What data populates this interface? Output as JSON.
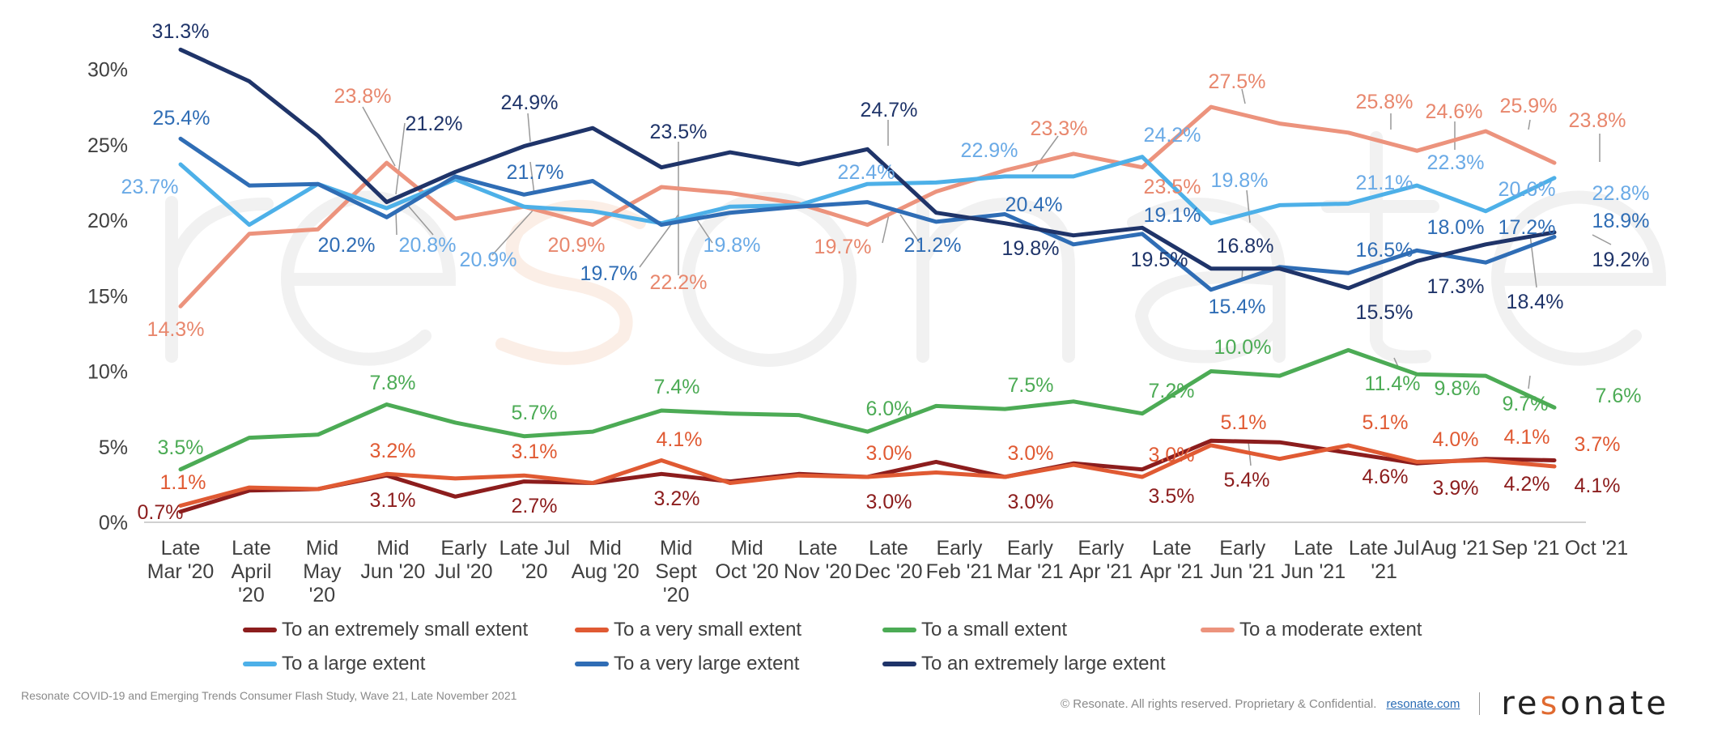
{
  "chart_data": {
    "type": "line",
    "categories": [
      [
        "Late",
        "Mar '20"
      ],
      [
        "Late",
        "April",
        "'20"
      ],
      [
        "Mid",
        "May",
        "'20"
      ],
      [
        "Mid",
        "Jun '20"
      ],
      [
        "Early",
        "Jul '20"
      ],
      [
        "Late Jul",
        "'20"
      ],
      [
        "Mid",
        "Aug '20"
      ],
      [
        "Mid",
        "Sept",
        "'20"
      ],
      [
        "Mid",
        "Oct '20"
      ],
      [
        "Late",
        "Nov '20"
      ],
      [
        "Late",
        "Dec '20"
      ],
      [
        "Early",
        "Feb '21"
      ],
      [
        "Early",
        "Mar '21"
      ],
      [
        "Early",
        "Apr '21"
      ],
      [
        "Late",
        "Apr '21"
      ],
      [
        "Early",
        "Jun '21"
      ],
      [
        "Late",
        "Jun '21"
      ],
      [
        "Late Jul",
        "'21"
      ],
      [
        "Aug '21"
      ],
      [
        "Sep '21"
      ],
      [
        "Oct '21"
      ]
    ],
    "ylim": [
      0,
      30
    ],
    "yticks": [
      "0%",
      "5%",
      "10%",
      "15%",
      "20%",
      "25%",
      "30%"
    ],
    "grid": false,
    "legend_position": "bottom",
    "series": [
      {
        "name": "To an extremely small extent",
        "color": "#8c1d1d",
        "label_color": "#8c1d1d",
        "values": [
          0.7,
          2.1,
          2.2,
          3.1,
          1.7,
          2.7,
          2.6,
          3.2,
          2.7,
          3.2,
          3.0,
          4.0,
          3.0,
          3.9,
          3.5,
          5.4,
          5.3,
          4.6,
          3.9,
          4.2,
          4.1
        ]
      },
      {
        "name": "To a very small extent",
        "color": "#e05a33",
        "label_color": "#e05a33",
        "values": [
          1.1,
          2.3,
          2.2,
          3.2,
          2.9,
          3.1,
          2.6,
          4.1,
          2.6,
          3.1,
          3.0,
          3.3,
          3.0,
          3.8,
          3.0,
          5.1,
          4.2,
          5.1,
          4.0,
          4.1,
          3.7
        ]
      },
      {
        "name": "To a small extent",
        "color": "#4cab55",
        "label_color": "#4cab55",
        "values": [
          3.5,
          5.6,
          5.8,
          7.8,
          6.6,
          5.7,
          6.0,
          7.4,
          7.2,
          7.1,
          6.0,
          7.7,
          7.5,
          8.0,
          7.2,
          10.0,
          9.7,
          11.4,
          9.8,
          9.7,
          7.6
        ]
      },
      {
        "name": "To a moderate extent",
        "color": "#ec937d",
        "label_color": "#e8876d",
        "values": [
          14.3,
          19.1,
          19.4,
          23.8,
          20.1,
          20.9,
          19.7,
          22.2,
          21.8,
          21.1,
          19.7,
          21.9,
          23.3,
          24.4,
          23.5,
          27.5,
          26.4,
          25.8,
          24.6,
          25.9,
          23.8
        ]
      },
      {
        "name": "To a large extent",
        "color": "#4db0e8",
        "label_color": "#6aaae6",
        "values": [
          23.7,
          19.7,
          22.4,
          20.8,
          22.7,
          20.9,
          20.6,
          19.8,
          20.9,
          21.0,
          22.4,
          22.5,
          22.9,
          22.9,
          24.2,
          19.8,
          21.0,
          21.1,
          22.3,
          20.6,
          22.8
        ]
      },
      {
        "name": "To a very large extent",
        "color": "#2f6db5",
        "label_color": "#2f6db5",
        "values": [
          25.4,
          22.3,
          22.4,
          20.2,
          22.9,
          21.7,
          22.6,
          19.7,
          20.5,
          20.9,
          21.2,
          19.9,
          20.4,
          18.4,
          19.1,
          15.4,
          16.9,
          16.5,
          18.0,
          17.2,
          18.9
        ]
      },
      {
        "name": "To an extremely large extent",
        "color": "#1f3469",
        "label_color": "#1f3469",
        "values": [
          31.3,
          29.2,
          25.6,
          21.2,
          23.2,
          24.9,
          26.1,
          23.5,
          24.5,
          23.7,
          24.7,
          20.5,
          19.8,
          19.0,
          19.5,
          16.8,
          16.8,
          15.5,
          17.3,
          18.4,
          19.2
        ]
      }
    ],
    "data_labels": [
      {
        "series": 6,
        "text": "31.3%"
      },
      {
        "series": 5,
        "text": "25.4%"
      },
      {
        "series": 4,
        "text": "23.7%"
      },
      {
        "series": 3,
        "text": "14.3%"
      },
      {
        "series": 3,
        "text": "23.8%"
      },
      {
        "series": 6,
        "text": "21.2%"
      },
      {
        "series": 5,
        "text": "20.2%"
      },
      {
        "series": 4,
        "text": "20.8%"
      },
      {
        "series": 6,
        "text": "24.9%"
      },
      {
        "series": 5,
        "text": "21.7%"
      },
      {
        "series": 4,
        "text": "20.9%"
      },
      {
        "series": 3,
        "text": "20.9%"
      },
      {
        "series": 5,
        "text": "19.7%"
      },
      {
        "series": 3,
        "text": "22.2%"
      },
      {
        "series": 6,
        "text": "23.5%"
      },
      {
        "series": 4,
        "text": "19.8%"
      },
      {
        "series": 6,
        "text": "24.7%"
      },
      {
        "series": 4,
        "text": "22.4%"
      },
      {
        "series": 3,
        "text": "19.7%"
      },
      {
        "series": 5,
        "text": "21.2%"
      },
      {
        "series": 4,
        "text": "22.9%"
      },
      {
        "series": 3,
        "text": "23.3%"
      },
      {
        "series": 5,
        "text": "20.4%"
      },
      {
        "series": 6,
        "text": "19.8%"
      },
      {
        "series": 4,
        "text": "24.2%"
      },
      {
        "series": 3,
        "text": "23.5%"
      },
      {
        "series": 5,
        "text": "19.1%"
      },
      {
        "series": 6,
        "text": "19.5%"
      },
      {
        "series": 3,
        "text": "27.5%"
      },
      {
        "series": 4,
        "text": "19.8%"
      },
      {
        "series": 6,
        "text": "16.8%"
      },
      {
        "series": 5,
        "text": "15.4%"
      },
      {
        "series": 3,
        "text": "25.8%"
      },
      {
        "series": 4,
        "text": "21.1%"
      },
      {
        "series": 5,
        "text": "16.5%"
      },
      {
        "series": 6,
        "text": "15.5%"
      },
      {
        "series": 3,
        "text": "24.6%"
      },
      {
        "series": 4,
        "text": "22.3%"
      },
      {
        "series": 5,
        "text": "18.0%"
      },
      {
        "series": 6,
        "text": "17.3%"
      },
      {
        "series": 3,
        "text": "25.9%"
      },
      {
        "series": 4,
        "text": "20.6%"
      },
      {
        "series": 5,
        "text": "17.2%"
      },
      {
        "series": 6,
        "text": "18.4%"
      },
      {
        "series": 3,
        "text": "23.8%"
      },
      {
        "series": 4,
        "text": "22.8%"
      },
      {
        "series": 5,
        "text": "18.9%"
      },
      {
        "series": 6,
        "text": "19.2%"
      },
      {
        "series": 2,
        "text": "3.5%"
      },
      {
        "series": 1,
        "text": "1.1%"
      },
      {
        "series": 0,
        "text": "0.7%"
      },
      {
        "series": 2,
        "text": "7.8%"
      },
      {
        "series": 1,
        "text": "3.2%"
      },
      {
        "series": 0,
        "text": "3.1%"
      },
      {
        "series": 2,
        "text": "5.7%"
      },
      {
        "series": 1,
        "text": "3.1%"
      },
      {
        "series": 0,
        "text": "2.7%"
      },
      {
        "series": 2,
        "text": "7.4%"
      },
      {
        "series": 1,
        "text": "4.1%"
      },
      {
        "series": 0,
        "text": "3.2%"
      },
      {
        "series": 2,
        "text": "6.0%"
      },
      {
        "series": 1,
        "text": "3.0%"
      },
      {
        "series": 0,
        "text": "3.0%"
      },
      {
        "series": 2,
        "text": "7.5%"
      },
      {
        "series": 1,
        "text": "3.0%"
      },
      {
        "series": 0,
        "text": "3.0%"
      },
      {
        "series": 2,
        "text": "7.2%"
      },
      {
        "series": 1,
        "text": "3.0%"
      },
      {
        "series": 0,
        "text": "3.5%"
      },
      {
        "series": 2,
        "text": "10.0%"
      },
      {
        "series": 1,
        "text": "5.1%"
      },
      {
        "series": 0,
        "text": "5.4%"
      },
      {
        "series": 2,
        "text": "11.4%"
      },
      {
        "series": 1,
        "text": "5.1%"
      },
      {
        "series": 0,
        "text": "4.6%"
      },
      {
        "series": 2,
        "text": "9.8%"
      },
      {
        "series": 1,
        "text": "4.0%"
      },
      {
        "series": 0,
        "text": "3.9%"
      },
      {
        "series": 2,
        "text": "9.7%"
      },
      {
        "series": 1,
        "text": "4.1%"
      },
      {
        "series": 0,
        "text": "4.2%"
      },
      {
        "series": 2,
        "text": "7.6%"
      },
      {
        "series": 1,
        "text": "3.7%"
      },
      {
        "series": 0,
        "text": "4.1%"
      }
    ]
  },
  "legend": {
    "items": [
      "To an extremely small extent",
      "To a very small extent",
      "To a small extent",
      "To a moderate extent",
      "To a large extent",
      "To a very large extent",
      "To an extremely large extent"
    ]
  },
  "watermark": "resonate",
  "footer": {
    "source": "Resonate COVID-19 and Emerging Trends Consumer Flash Study, Wave 21, Late November 2021",
    "copyright": "© Resonate. All rights reserved. Proprietary & Confidential.",
    "link": "resonate.com",
    "logo": "resonate"
  }
}
